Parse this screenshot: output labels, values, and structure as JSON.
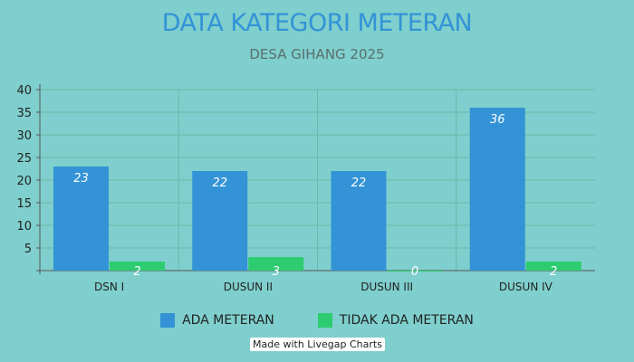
{
  "chart_data": {
    "type": "bar",
    "title": "DATA KATEGORI METERAN",
    "subtitle": "DESA GIHANG 2025",
    "categories": [
      "DSN I",
      "DUSUN II",
      "DUSUN III",
      "DUSUN IV"
    ],
    "series": [
      {
        "name": "ADA METERAN",
        "values": [
          23,
          22,
          22,
          36
        ],
        "color": "#3393d6"
      },
      {
        "name": "TIDAK ADA METERAN",
        "values": [
          2,
          3,
          0,
          2
        ],
        "color": "#2ecc71"
      }
    ],
    "yticks": [
      5,
      10,
      15,
      20,
      25,
      30,
      35,
      40
    ],
    "ylim": [
      0,
      40
    ],
    "grid": true,
    "legend_position": "bottom"
  },
  "credit": "Made with Livegap Charts"
}
